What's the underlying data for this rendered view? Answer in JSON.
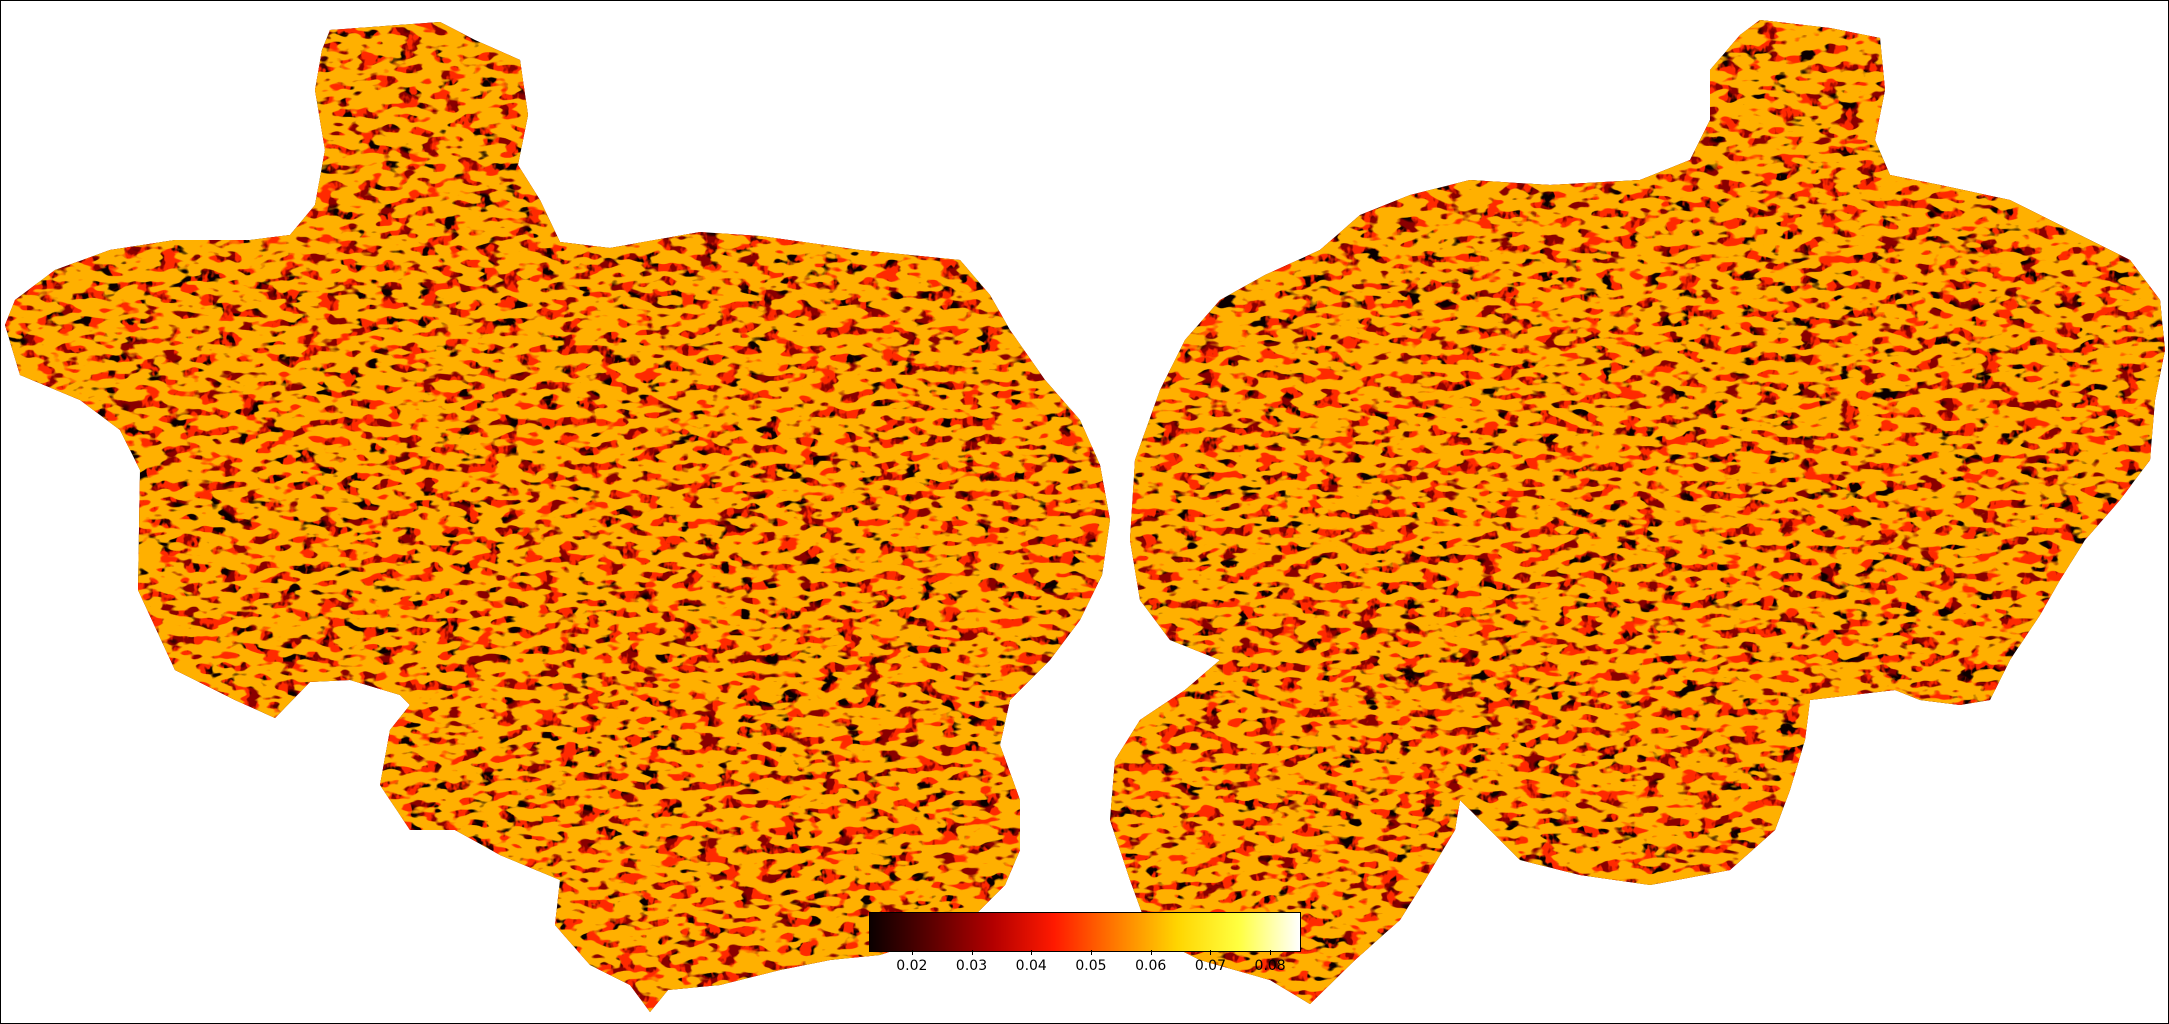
{
  "figure": {
    "colormap": "hot",
    "background": "#ffffff",
    "hemispheres": [
      "left-hemisphere-flatmap",
      "right-hemisphere-flatmap"
    ]
  },
  "colorbar": {
    "colors": [
      "#0b0000",
      "#5c0000",
      "#b30000",
      "#ff1a00",
      "#ff7a00",
      "#ffd500",
      "#ffff40",
      "#ffffff"
    ],
    "vmin": 0.013,
    "vmax": 0.085,
    "ticks": [
      "0.02",
      "0.03",
      "0.04",
      "0.05",
      "0.06",
      "0.07",
      "0.08"
    ],
    "tick_values": [
      0.02,
      0.03,
      0.04,
      0.05,
      0.06,
      0.07,
      0.08
    ]
  }
}
